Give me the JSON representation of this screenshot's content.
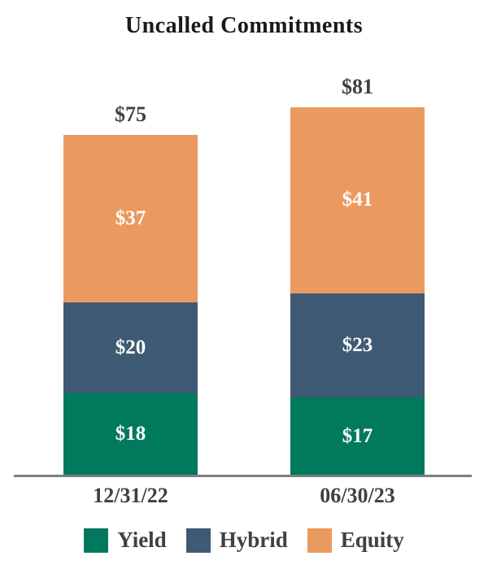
{
  "title": "Uncalled Commitments",
  "chart_data": {
    "type": "bar",
    "stacked": true,
    "title": "Uncalled Commitments",
    "categories": [
      "12/31/22",
      "06/30/23"
    ],
    "series": [
      {
        "name": "Yield",
        "color": "#00795D",
        "values": [
          18,
          17
        ]
      },
      {
        "name": "Hybrid",
        "color": "#3E5A74",
        "values": [
          20,
          23
        ]
      },
      {
        "name": "Equity",
        "color": "#EB9A5F",
        "values": [
          37,
          41
        ]
      }
    ],
    "totals": [
      "$75",
      "$81"
    ],
    "value_prefix": "$",
    "xlabel": "",
    "ylabel": "",
    "ylim": [
      0,
      81
    ],
    "grid": false,
    "legend_position": "bottom"
  },
  "colors": {
    "title_text": "#1a1a1a",
    "label_text": "#404040",
    "segment_label_text": "#ffffff",
    "axis_line": "#7f7f7f",
    "background": "#ffffff"
  }
}
